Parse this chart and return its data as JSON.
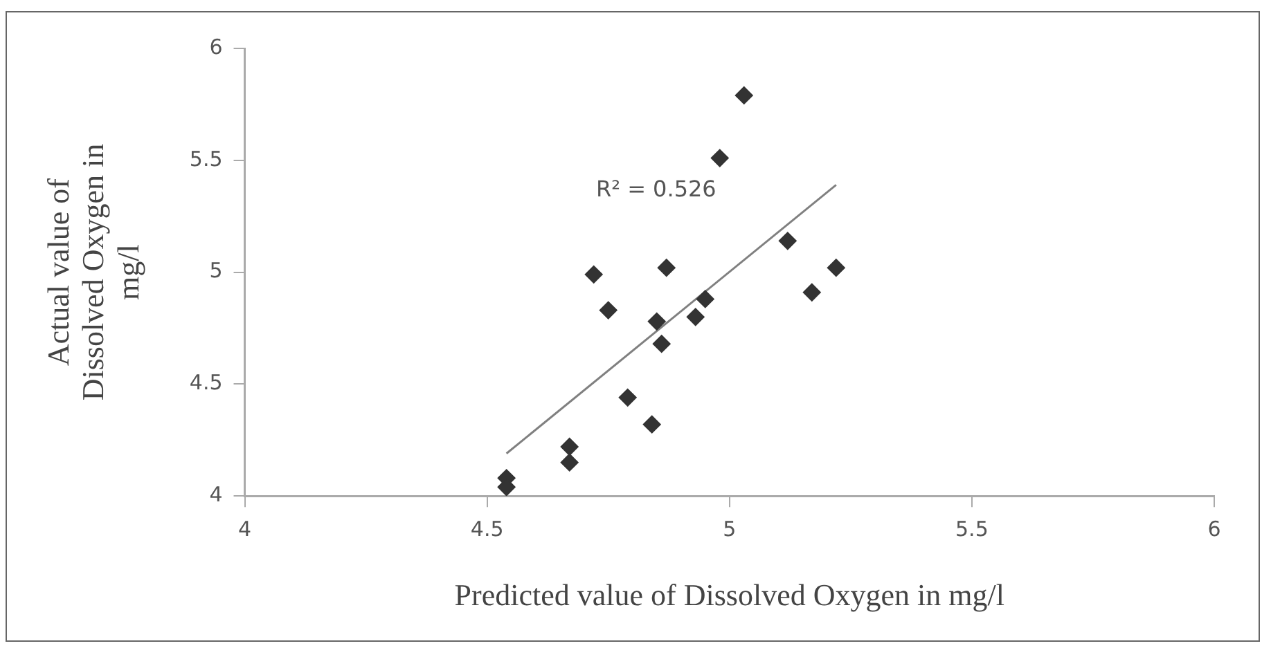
{
  "chart_data": {
    "type": "scatter",
    "xlabel": "Predicted value of Dissolved Oxygen in mg/l",
    "ylabel": "Actual value of Dissolved Oxygen in mg/l",
    "xlim": [
      4,
      6
    ],
    "xticks": [
      4,
      4.5,
      5,
      5.5,
      6
    ],
    "ylim": [
      4,
      6
    ],
    "yticks": [
      4,
      4.5,
      5,
      5.5,
      6
    ],
    "grid": false,
    "legend": false,
    "marker": "diamond",
    "x": [
      4.54,
      4.54,
      4.67,
      4.67,
      4.72,
      4.75,
      4.79,
      4.84,
      4.85,
      4.86,
      4.87,
      4.93,
      4.95,
      4.98,
      5.03,
      5.12,
      5.17,
      5.22
    ],
    "series": [
      {
        "color": "#333333",
        "values": [
          4.08,
          4.04,
          4.22,
          4.15,
          4.99,
          4.83,
          4.44,
          4.32,
          4.78,
          4.68,
          5.02,
          4.8,
          4.88,
          5.51,
          5.79,
          5.14,
          4.91,
          5.02
        ]
      },
      {
        "type": "line",
        "color": "#808080",
        "x": [
          4.54,
          5.22
        ],
        "values": [
          4.19,
          5.39
        ],
        "marker": "none",
        "line_style": "solid"
      }
    ],
    "annotations": [
      "R² = 0.526"
    ]
  }
}
